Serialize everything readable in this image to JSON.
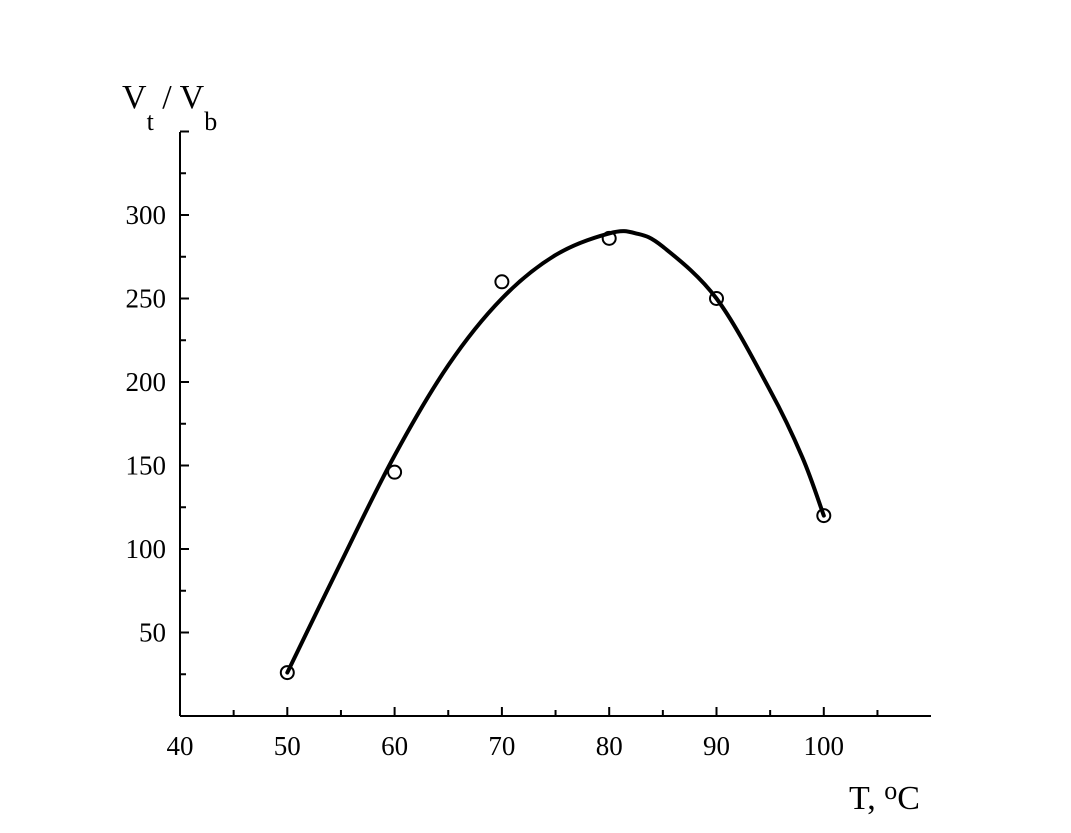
{
  "chart_data": {
    "type": "scatter",
    "title": "",
    "ylabel": {
      "main": "V",
      "sub1": "t",
      "sep": " / V",
      "sub2": "b"
    },
    "xlabel": {
      "prefix": "T, ",
      "sup": "o",
      "suffix": "C"
    },
    "xlim": [
      40,
      110
    ],
    "ylim": [
      0,
      350
    ],
    "x_ticks": [
      "40",
      "50",
      "60",
      "70",
      "80",
      "90",
      "100"
    ],
    "y_ticks": [
      "50",
      "100",
      "150",
      "200",
      "250",
      "300"
    ],
    "grid": false,
    "series": [
      {
        "marker": "open-circle",
        "points": [
          {
            "x": 50,
            "y": 26
          },
          {
            "x": 60,
            "y": 146
          },
          {
            "x": 70,
            "y": 260
          },
          {
            "x": 80,
            "y": 286
          },
          {
            "x": 90,
            "y": 250
          },
          {
            "x": 100,
            "y": 120
          }
        ]
      },
      {
        "marker": "none",
        "style": "smooth-fit-curve",
        "points": [
          {
            "x": 50,
            "y": 26
          },
          {
            "x": 55,
            "y": 92
          },
          {
            "x": 60,
            "y": 156
          },
          {
            "x": 65,
            "y": 210
          },
          {
            "x": 70,
            "y": 250
          },
          {
            "x": 75,
            "y": 276
          },
          {
            "x": 80,
            "y": 289
          },
          {
            "x": 82.5,
            "y": 289
          },
          {
            "x": 85,
            "y": 281
          },
          {
            "x": 90,
            "y": 250
          },
          {
            "x": 95,
            "y": 195
          },
          {
            "x": 98,
            "y": 155
          },
          {
            "x": 100,
            "y": 120
          }
        ]
      }
    ],
    "colors": {
      "line": "#000000",
      "marker": "#000000",
      "background": "#ffffff"
    }
  }
}
